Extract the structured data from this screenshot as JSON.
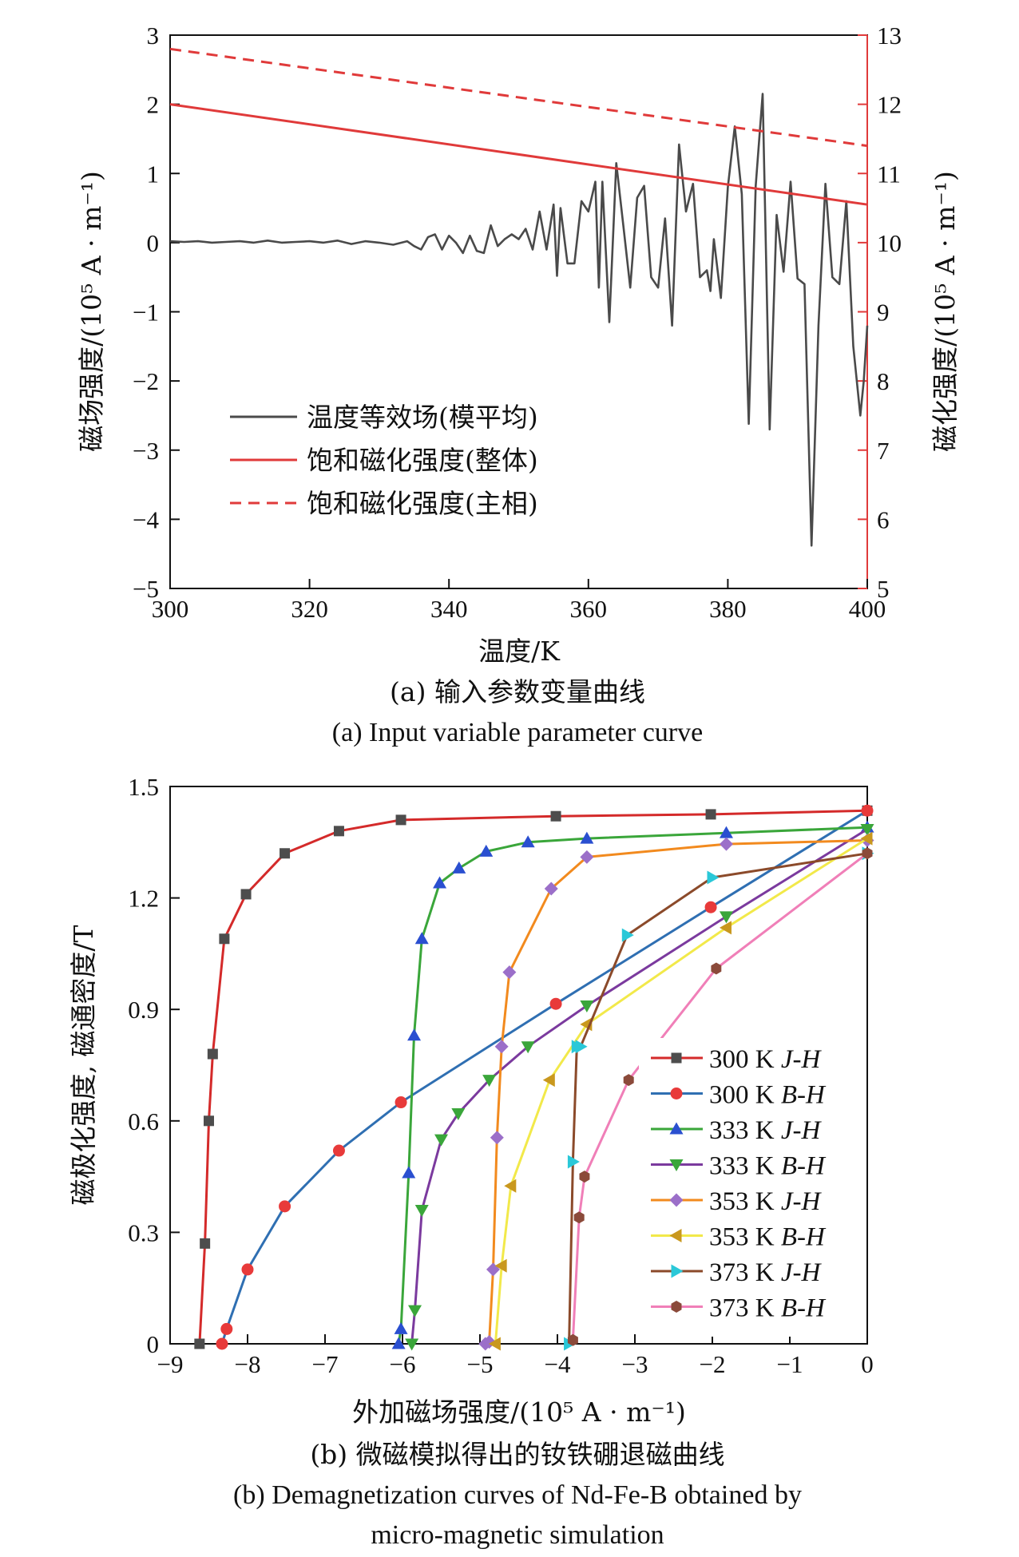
{
  "chart_data": [
    {
      "type": "line",
      "caption_zh": "(a) 输入参数变量曲线",
      "caption_en": "(a) Input variable parameter curve",
      "xlabel": "温度/K",
      "ylabel_left": "磁场强度/(10⁵ A · m⁻¹)",
      "ylabel_right": "磁化强度/(10⁵ A · m⁻¹)",
      "xlim": [
        300,
        400
      ],
      "ylim_left": [
        -5,
        3
      ],
      "ylim_right": [
        5,
        13
      ],
      "x_ticks": [
        "300",
        "320",
        "340",
        "360",
        "380",
        "400"
      ],
      "y_left_ticks": [
        "3",
        "2",
        "1",
        "0",
        "−1",
        "−2",
        "−3",
        "−4",
        "−5"
      ],
      "y_right_ticks": [
        "13",
        "12",
        "11",
        "10",
        "9",
        "8",
        "7",
        "6",
        "5"
      ],
      "legend_position": "lower-left",
      "colors": {
        "noise": "#4a4a4a",
        "saturation": "#e03a3a"
      },
      "series": [
        {
          "name": "温度等效场(模平均)",
          "axis": "left",
          "style": "solid",
          "color": "#4a4a4a",
          "x": [
            300,
            302,
            304,
            306,
            308,
            310,
            312,
            314,
            316,
            318,
            320,
            322,
            324,
            326,
            328,
            330,
            332,
            334,
            335,
            336,
            337,
            338,
            339,
            340,
            341,
            342,
            343,
            344,
            345,
            346,
            347,
            348,
            349,
            350,
            351,
            352,
            353,
            354,
            355,
            355.5,
            356,
            357,
            358,
            359,
            360,
            361,
            361.5,
            362,
            363,
            364,
            365,
            366,
            367,
            368,
            369,
            370,
            371,
            372,
            373,
            374,
            375,
            376,
            377,
            377.5,
            378,
            379,
            380,
            381,
            382,
            383,
            384,
            385,
            386,
            387,
            388,
            389,
            390,
            391,
            392,
            393,
            394,
            395,
            396,
            397,
            398,
            399,
            399.5,
            400
          ],
          "y": [
            0.02,
            0.01,
            0.02,
            0.0,
            0.01,
            0.02,
            0.0,
            0.03,
            0.0,
            0.01,
            0.02,
            0.0,
            0.03,
            -0.02,
            0.02,
            0.0,
            -0.03,
            0.02,
            -0.05,
            -0.1,
            0.08,
            0.12,
            -0.1,
            0.1,
            0.0,
            -0.15,
            0.1,
            -0.12,
            -0.15,
            0.25,
            -0.05,
            0.05,
            0.12,
            0.05,
            0.2,
            -0.1,
            0.45,
            -0.1,
            0.55,
            -0.48,
            0.5,
            -0.3,
            -0.3,
            0.6,
            0.45,
            0.88,
            -0.65,
            0.88,
            -1.15,
            1.15,
            0.25,
            -0.65,
            0.65,
            0.82,
            -0.5,
            -0.65,
            0.35,
            -1.2,
            1.42,
            0.45,
            0.85,
            -0.5,
            -0.4,
            -0.7,
            0.05,
            -0.8,
            0.8,
            1.68,
            0.7,
            -2.62,
            0.82,
            2.15,
            -2.7,
            0.4,
            -0.42,
            0.88,
            -0.52,
            -0.6,
            -4.38,
            -1.2,
            0.85,
            -0.5,
            -0.6,
            0.6,
            -1.5,
            -2.5,
            -2.0,
            -1.2
          ]
        },
        {
          "name": "饱和磁化强度(整体)",
          "axis": "right",
          "style": "solid",
          "color": "#e03a3a",
          "x": [
            300,
            400
          ],
          "y": [
            12.0,
            10.55
          ]
        },
        {
          "name": "饱和磁化强度(主相)",
          "axis": "right",
          "style": "dashed",
          "color": "#e03a3a",
          "x": [
            300,
            400
          ],
          "y": [
            12.8,
            11.4
          ]
        }
      ]
    },
    {
      "type": "line",
      "caption_zh": "(b) 微磁模拟得出的钕铁硼退磁曲线",
      "caption_en_line1": "(b) Demagnetization curves of Nd-Fe-B obtained by",
      "caption_en_line2": "micro-magnetic simulation",
      "xlabel": "外加磁场强度/(10⁵ A · m⁻¹)",
      "ylabel": "磁极化强度, 磁通密度/T",
      "xlim": [
        -9,
        0
      ],
      "ylim": [
        0,
        1.5
      ],
      "x_ticks": [
        "−9",
        "−8",
        "−7",
        "−6",
        "−5",
        "−4",
        "−3",
        "−2",
        "−1",
        "0"
      ],
      "y_ticks": [
        "1.5",
        "1.2",
        "0.9",
        "0.6",
        "0.3",
        "0"
      ],
      "legend_position": "lower-right",
      "series": [
        {
          "name": "300 K J-H",
          "temp": "300 K",
          "kind": "J-H",
          "color": "#d42a2a",
          "marker_color": "#4d4d4d",
          "marker": "square",
          "x": [
            -8.62,
            -8.55,
            -8.5,
            -8.45,
            -8.3,
            -8.02,
            -7.52,
            -6.82,
            -6.02,
            -4.02,
            -2.02,
            0.0
          ],
          "y": [
            0.0,
            0.27,
            0.6,
            0.78,
            1.09,
            1.21,
            1.32,
            1.38,
            1.41,
            1.42,
            1.425,
            1.435
          ]
        },
        {
          "name": "300 K B-H",
          "temp": "300 K",
          "kind": "B-H",
          "color": "#2f6fb2",
          "marker_color": "#e83a3a",
          "marker": "circle",
          "x": [
            -8.33,
            -8.27,
            -8.0,
            -7.52,
            -6.82,
            -6.02,
            -4.02,
            -2.02,
            0.0
          ],
          "y": [
            0.0,
            0.04,
            0.2,
            0.37,
            0.52,
            0.65,
            0.915,
            1.175,
            1.435
          ]
        },
        {
          "name": "333 K J-H",
          "temp": "333 K",
          "kind": "J-H",
          "color": "#3aa63a",
          "marker_color": "#2a4fd0",
          "marker": "triangle-up",
          "x": [
            -6.05,
            -6.02,
            -5.92,
            -5.85,
            -5.75,
            -5.52,
            -5.27,
            -4.92,
            -4.38,
            -3.62,
            -1.82,
            0.0
          ],
          "y": [
            0.0,
            0.04,
            0.46,
            0.83,
            1.09,
            1.24,
            1.28,
            1.325,
            1.35,
            1.36,
            1.375,
            1.39
          ]
        },
        {
          "name": "333 K B-H",
          "temp": "333 K",
          "kind": "B-H",
          "color": "#7b3a9e",
          "marker_color": "#3aa63a",
          "marker": "triangle-down",
          "x": [
            -5.88,
            -5.84,
            -5.75,
            -5.5,
            -5.28,
            -4.88,
            -4.38,
            -3.62,
            -1.82,
            0.0
          ],
          "y": [
            0.0,
            0.09,
            0.36,
            0.55,
            0.62,
            0.71,
            0.8,
            0.91,
            1.15,
            1.385
          ]
        },
        {
          "name": "353 K J-H",
          "temp": "353 K",
          "kind": "J-H",
          "color": "#f28a1e",
          "marker_color": "#9b6fc9",
          "marker": "diamond",
          "x": [
            -4.93,
            -4.88,
            -4.83,
            -4.78,
            -4.72,
            -4.62,
            -4.08,
            -3.62,
            -1.82,
            0.0
          ],
          "y": [
            0.0,
            0.005,
            0.2,
            0.555,
            0.8,
            1.0,
            1.225,
            1.31,
            1.345,
            1.355
          ]
        },
        {
          "name": "353 K B-H",
          "temp": "353 K",
          "kind": "B-H",
          "color": "#f2e94a",
          "marker_color": "#c9981e",
          "marker": "triangle-left",
          "x": [
            -4.8,
            -4.72,
            -4.6,
            -4.1,
            -3.62,
            -1.82,
            0.0
          ],
          "y": [
            0.0,
            0.21,
            0.425,
            0.71,
            0.86,
            1.12,
            1.36
          ]
        },
        {
          "name": "373 K J-H",
          "temp": "373 K",
          "kind": "J-H",
          "color": "#8b4a2a",
          "marker_color": "#2ac8d8",
          "marker": "triangle-right",
          "x": [
            -3.85,
            -3.8,
            -3.75,
            -3.7,
            -3.1,
            -2.0,
            0.0
          ],
          "y": [
            0.0,
            0.49,
            0.8,
            0.8,
            1.1,
            1.255,
            1.32
          ]
        },
        {
          "name": "373 K B-H",
          "temp": "373 K",
          "kind": "B-H",
          "color": "#f07fb8",
          "marker_color": "#8b4a3a",
          "marker": "hexagon",
          "x": [
            -3.8,
            -3.72,
            -3.65,
            -3.08,
            -1.95,
            0.0
          ],
          "y": [
            0.01,
            0.34,
            0.45,
            0.71,
            1.01,
            1.32
          ]
        }
      ]
    }
  ]
}
